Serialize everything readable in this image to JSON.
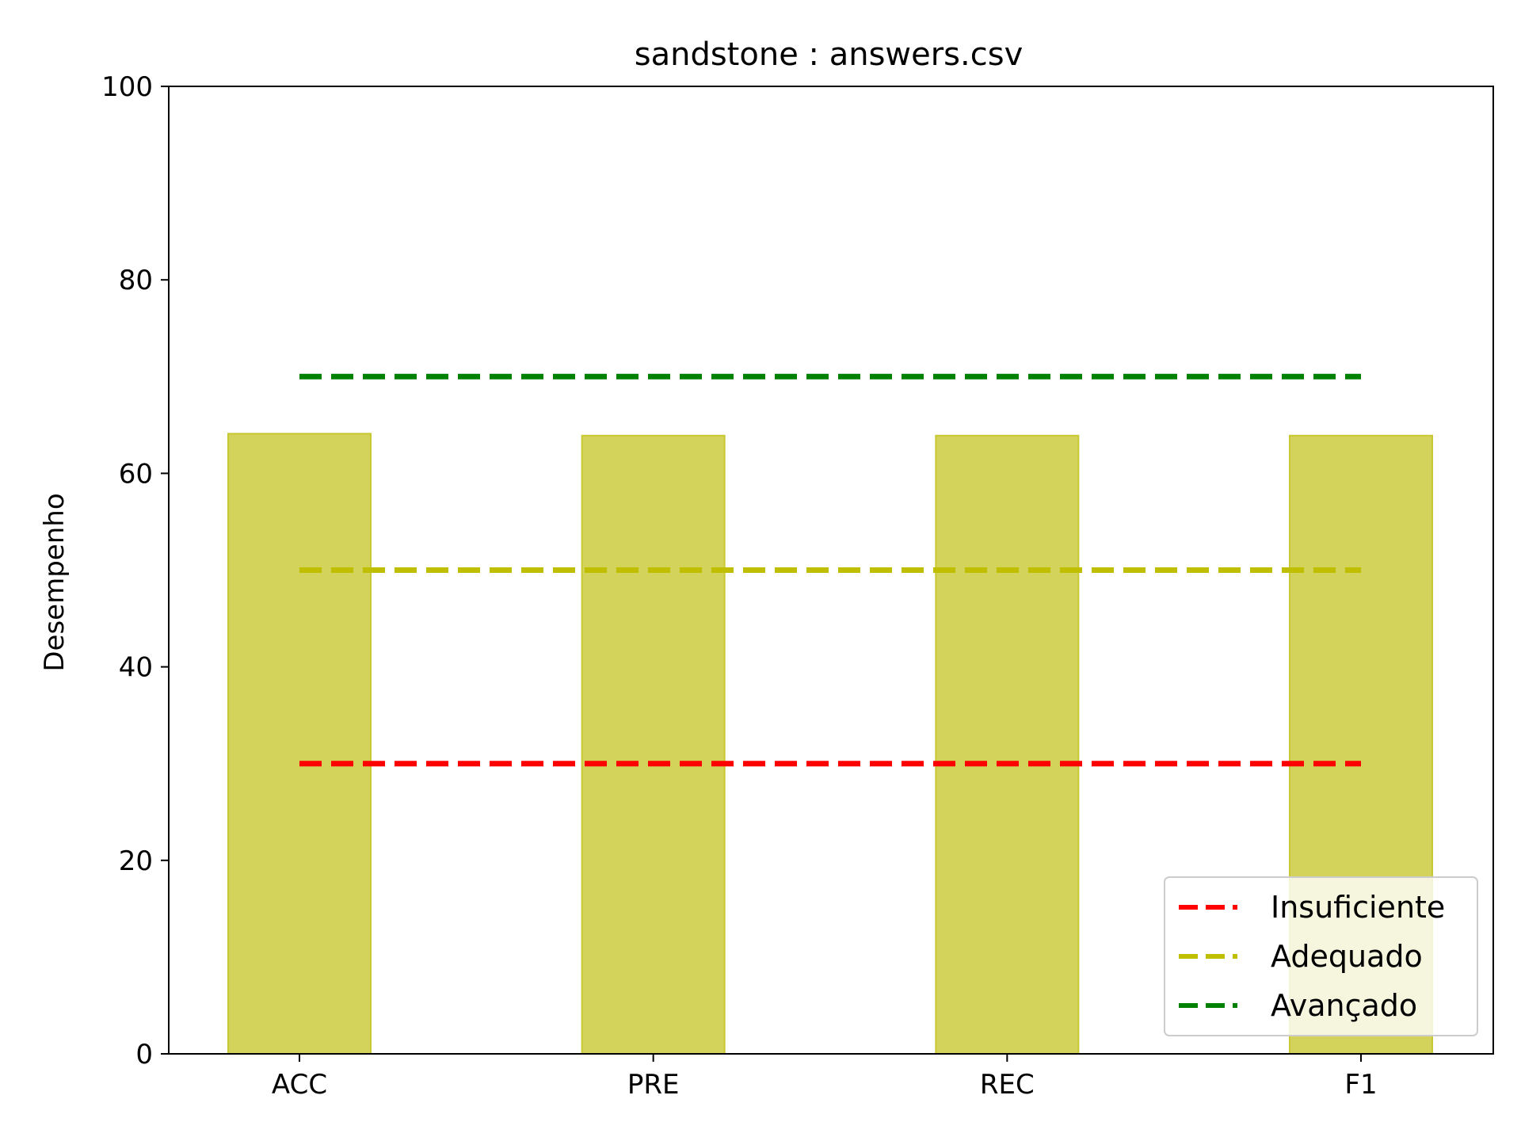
{
  "chart_data": {
    "type": "bar",
    "title": "sandstone : answers.csv",
    "xlabel": "",
    "ylabel": "Desempenho",
    "categories": [
      "ACC",
      "PRE",
      "REC",
      "F1"
    ],
    "values": [
      64.1,
      63.9,
      63.9,
      63.9
    ],
    "bar_color": "#c8c832",
    "ylim": [
      0,
      100
    ],
    "yticks": [
      0,
      20,
      40,
      60,
      80,
      100
    ],
    "grid": false,
    "legend_position": "lower right",
    "reference_lines": [
      {
        "name": "Insuficiente",
        "value": 30,
        "color": "#ff0000",
        "style": "dashed"
      },
      {
        "name": "Adequado",
        "value": 50,
        "color": "#bfbf00",
        "style": "dashed"
      },
      {
        "name": "Avançado",
        "value": 70,
        "color": "#008000",
        "style": "dashed"
      }
    ]
  }
}
